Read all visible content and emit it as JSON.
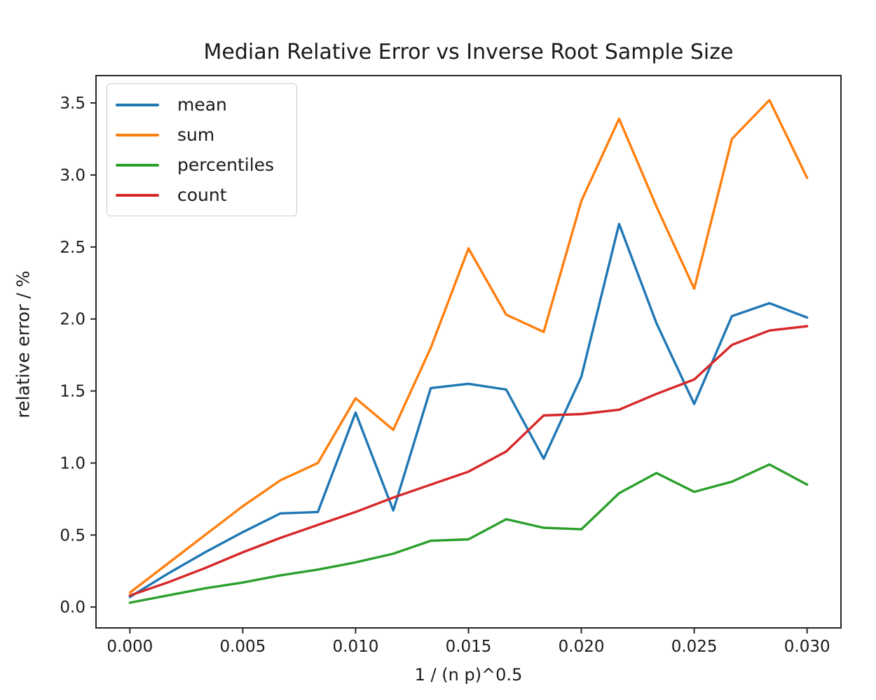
{
  "chart_data": {
    "type": "line",
    "title": "Median Relative Error vs Inverse Root Sample Size",
    "xlabel": "1 / (n p)^0.5",
    "ylabel": "relative error / %",
    "x": [
      0,
      0.00167,
      0.00333,
      0.005,
      0.00667,
      0.00833,
      0.01,
      0.01167,
      0.01333,
      0.015,
      0.01667,
      0.01833,
      0.02,
      0.02167,
      0.02333,
      0.025,
      0.02667,
      0.02833,
      0.03
    ],
    "series": [
      {
        "name": "mean",
        "color": "#1f77b4",
        "values": [
          0.07,
          0.23,
          0.38,
          0.52,
          0.65,
          0.66,
          1.35,
          0.67,
          1.52,
          1.55,
          1.51,
          1.03,
          1.6,
          2.66,
          1.97,
          1.41,
          2.02,
          2.11,
          2.01
        ]
      },
      {
        "name": "sum",
        "color": "#ff7f0e",
        "values": [
          0.1,
          0.3,
          0.5,
          0.7,
          0.88,
          1.0,
          1.45,
          1.23,
          1.8,
          2.49,
          2.03,
          1.91,
          2.82,
          3.39,
          2.78,
          2.21,
          3.25,
          3.52,
          2.98
        ]
      },
      {
        "name": "percentiles",
        "color": "#2ca02c",
        "values": [
          0.03,
          0.08,
          0.13,
          0.17,
          0.22,
          0.26,
          0.31,
          0.37,
          0.46,
          0.47,
          0.61,
          0.55,
          0.54,
          0.79,
          0.93,
          0.8,
          0.87,
          0.99,
          0.85
        ]
      },
      {
        "name": "count",
        "color": "#d62728",
        "values": [
          0.08,
          0.17,
          0.27,
          0.38,
          0.48,
          0.57,
          0.66,
          0.76,
          0.85,
          0.94,
          1.08,
          1.33,
          1.34,
          1.37,
          1.48,
          1.58,
          1.82,
          1.92,
          1.95
        ]
      }
    ],
    "xticks": [
      {
        "value": 0.0,
        "label": "0.000"
      },
      {
        "value": 0.005,
        "label": "0.005"
      },
      {
        "value": 0.01,
        "label": "0.010"
      },
      {
        "value": 0.015,
        "label": "0.015"
      },
      {
        "value": 0.02,
        "label": "0.020"
      },
      {
        "value": 0.025,
        "label": "0.025"
      },
      {
        "value": 0.03,
        "label": "0.030"
      }
    ],
    "yticks": [
      {
        "value": 0.0,
        "label": "0.0"
      },
      {
        "value": 0.5,
        "label": "0.5"
      },
      {
        "value": 1.0,
        "label": "1.0"
      },
      {
        "value": 1.5,
        "label": "1.5"
      },
      {
        "value": 2.0,
        "label": "2.0"
      },
      {
        "value": 2.5,
        "label": "2.5"
      },
      {
        "value": 3.0,
        "label": "3.0"
      },
      {
        "value": 3.5,
        "label": "3.5"
      }
    ],
    "xlim": [
      -0.0015,
      0.0315
    ],
    "ylim": [
      -0.145,
      3.69
    ],
    "legend_position": "upper left",
    "grid": false,
    "spine_color": "#262626",
    "line_width": 3.4
  }
}
